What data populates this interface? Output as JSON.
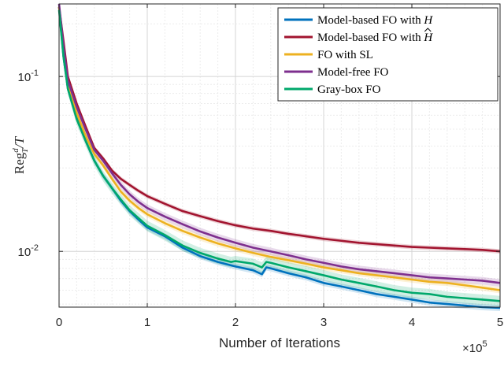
{
  "chart_data": {
    "type": "line",
    "yscale": "log",
    "xlabel": "Number of Iterations",
    "ylabel": {
      "base": "Reg",
      "superscript": "d",
      "subscript": "T",
      "suffix": "/T"
    },
    "x_multiplier_label": "×10",
    "x_multiplier_exponent": "5",
    "xlim": [
      0,
      5
    ],
    "ylim": [
      0.0048,
      0.26
    ],
    "xticks": [
      0,
      1,
      2,
      3,
      4,
      5
    ],
    "xtick_labels": [
      "0",
      "1",
      "2",
      "3",
      "4",
      "5"
    ],
    "ytick_labels": [
      {
        "value": 0.1,
        "base": "10",
        "exp": "-1"
      },
      {
        "value": 0.01,
        "base": "10",
        "exp": "-2"
      }
    ],
    "grid": true,
    "legend_position": "top-right",
    "series": [
      {
        "name": "Model-based FO with H",
        "legend_prefix": "Model-based FO with ",
        "legend_symbol": "H",
        "legend_hat": false,
        "color": "#0072BD",
        "x": [
          0,
          0.05,
          0.1,
          0.2,
          0.3,
          0.4,
          0.5,
          0.6,
          0.7,
          0.8,
          0.9,
          1.0,
          1.2,
          1.4,
          1.6,
          1.8,
          2.0,
          2.2,
          2.3,
          2.35,
          2.4,
          2.6,
          2.8,
          3.0,
          3.2,
          3.4,
          3.6,
          3.8,
          4.0,
          4.2,
          4.4,
          4.6,
          4.8,
          5.0
        ],
        "y": [
          0.25,
          0.13,
          0.085,
          0.058,
          0.043,
          0.033,
          0.027,
          0.023,
          0.0195,
          0.017,
          0.0152,
          0.0137,
          0.0122,
          0.0105,
          0.0094,
          0.0087,
          0.0082,
          0.0078,
          0.0074,
          0.0081,
          0.008,
          0.0075,
          0.0071,
          0.0066,
          0.0063,
          0.006,
          0.0057,
          0.0055,
          0.0053,
          0.0051,
          0.005,
          0.0049,
          0.0048,
          0.00475
        ]
      },
      {
        "name": "Model-based FO with Ĥ",
        "legend_prefix": "Model-based FO with ",
        "legend_symbol": "H",
        "legend_hat": true,
        "color": "#A2142F",
        "x": [
          0,
          0.05,
          0.1,
          0.2,
          0.3,
          0.4,
          0.5,
          0.6,
          0.7,
          0.8,
          0.9,
          1.0,
          1.2,
          1.4,
          1.6,
          1.8,
          2.0,
          2.2,
          2.4,
          2.6,
          2.8,
          3.0,
          3.2,
          3.4,
          3.6,
          3.8,
          4.0,
          4.2,
          4.4,
          4.6,
          4.8,
          5.0
        ],
        "y": [
          0.25,
          0.16,
          0.1,
          0.07,
          0.052,
          0.039,
          0.034,
          0.029,
          0.026,
          0.024,
          0.0222,
          0.0207,
          0.0187,
          0.017,
          0.0159,
          0.0149,
          0.0141,
          0.0135,
          0.0131,
          0.0126,
          0.0122,
          0.0118,
          0.0115,
          0.0112,
          0.011,
          0.0108,
          0.0106,
          0.0105,
          0.0104,
          0.0103,
          0.0102,
          0.01
        ]
      },
      {
        "name": "FO with SL",
        "legend_prefix": "FO with SL",
        "legend_symbol": "",
        "legend_hat": false,
        "color": "#EDB120",
        "x": [
          0,
          0.05,
          0.1,
          0.2,
          0.3,
          0.4,
          0.5,
          0.6,
          0.7,
          0.8,
          0.9,
          1.0,
          1.2,
          1.4,
          1.6,
          1.8,
          2.0,
          2.2,
          2.4,
          2.6,
          2.8,
          3.0,
          3.2,
          3.4,
          3.6,
          3.8,
          4.0,
          4.2,
          4.4,
          4.6,
          4.8,
          5.0
        ],
        "y": [
          0.25,
          0.14,
          0.09,
          0.062,
          0.046,
          0.036,
          0.031,
          0.026,
          0.022,
          0.0195,
          0.0177,
          0.0163,
          0.0145,
          0.0131,
          0.012,
          0.0111,
          0.0104,
          0.0098,
          0.0093,
          0.0089,
          0.0085,
          0.0081,
          0.0078,
          0.0075,
          0.0073,
          0.0071,
          0.0069,
          0.0067,
          0.0066,
          0.0064,
          0.0062,
          0.006
        ]
      },
      {
        "name": "Model-free FO",
        "legend_prefix": "Model-free FO",
        "legend_symbol": "",
        "legend_hat": false,
        "color": "#7E2F8E",
        "x": [
          0,
          0.05,
          0.1,
          0.2,
          0.3,
          0.4,
          0.5,
          0.6,
          0.7,
          0.8,
          0.9,
          1.0,
          1.2,
          1.4,
          1.6,
          1.8,
          2.0,
          2.2,
          2.4,
          2.6,
          2.8,
          3.0,
          3.2,
          3.4,
          3.6,
          3.8,
          4.0,
          4.2,
          4.4,
          4.6,
          4.8,
          5.0
        ],
        "y": [
          0.26,
          0.15,
          0.095,
          0.067,
          0.05,
          0.038,
          0.033,
          0.028,
          0.024,
          0.0212,
          0.0192,
          0.0177,
          0.0158,
          0.0143,
          0.013,
          0.012,
          0.0112,
          0.0105,
          0.01,
          0.0095,
          0.009,
          0.0086,
          0.0082,
          0.0079,
          0.0077,
          0.0075,
          0.0073,
          0.0071,
          0.007,
          0.0069,
          0.0068,
          0.0066
        ]
      },
      {
        "name": "Gray-box FO",
        "legend_prefix": "Gray-box FO",
        "legend_symbol": "",
        "legend_hat": false,
        "color": "#00A86B",
        "x": [
          0,
          0.05,
          0.1,
          0.2,
          0.3,
          0.4,
          0.5,
          0.6,
          0.7,
          0.8,
          0.9,
          1.0,
          1.2,
          1.4,
          1.6,
          1.8,
          1.95,
          2.0,
          2.2,
          2.3,
          2.35,
          2.4,
          2.6,
          2.8,
          3.0,
          3.2,
          3.4,
          3.6,
          3.8,
          4.0,
          4.2,
          4.4,
          4.6,
          4.8,
          5.0
        ],
        "y": [
          0.24,
          0.13,
          0.085,
          0.057,
          0.043,
          0.033,
          0.027,
          0.023,
          0.0198,
          0.0172,
          0.0155,
          0.014,
          0.0124,
          0.0108,
          0.0098,
          0.0091,
          0.0087,
          0.0088,
          0.0085,
          0.0081,
          0.0087,
          0.0086,
          0.0081,
          0.0077,
          0.0073,
          0.0069,
          0.0066,
          0.0063,
          0.006,
          0.0058,
          0.0057,
          0.0055,
          0.0054,
          0.0053,
          0.0052
        ]
      }
    ]
  }
}
